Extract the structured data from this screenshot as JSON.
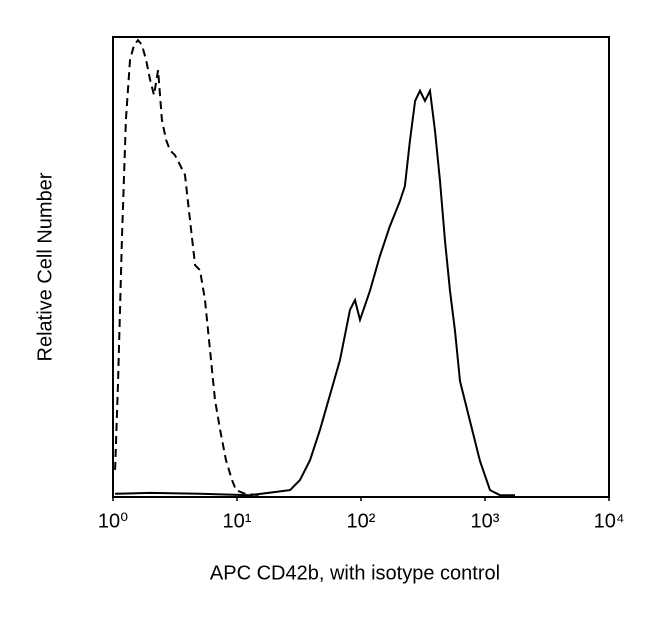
{
  "chart_data": {
    "type": "line",
    "xlabel": "APC CD42b, with isotype control",
    "ylabel": "Relative Cell Number",
    "xscale": "log",
    "xlim": [
      1,
      10000
    ],
    "ylim": [
      0,
      100
    ],
    "xticks": [
      {
        "value": 1,
        "label": "10⁰"
      },
      {
        "value": 10,
        "label": "10¹"
      },
      {
        "value": 100,
        "label": "10²"
      },
      {
        "value": 1000,
        "label": "10³"
      },
      {
        "value": 10000,
        "label": "10⁴"
      }
    ],
    "series": [
      {
        "color": "#000000",
        "dashed": true,
        "x": [
          1.04,
          1.1,
          1.18,
          1.27,
          1.37,
          1.48,
          1.59,
          1.71,
          1.85,
          1.99,
          2.14,
          2.31,
          2.48,
          2.68,
          2.88,
          3.16,
          3.47,
          3.81,
          4.18,
          4.59,
          5.03,
          5.52,
          6.06,
          6.65,
          7.3,
          8.15,
          9.11,
          9.81,
          11.6,
          15.3
        ],
        "values": [
          5.9,
          25.4,
          55.9,
          82.0,
          95.0,
          98.3,
          99.3,
          98.3,
          95.0,
          90.7,
          87.4,
          92.8,
          82.0,
          77.6,
          75.4,
          74.3,
          72.2,
          70.0,
          60.2,
          50.4,
          49.3,
          42.8,
          32.0,
          21.1,
          14.6,
          8.0,
          3.7,
          1.5,
          0.7,
          0.4
        ]
      },
      {
        "color": "#000000",
        "dashed": false,
        "x": [
          1.04,
          1.99,
          5.03,
          12.7,
          26.8,
          32.2,
          38.8,
          46.7,
          56.2,
          67.7,
          81.5,
          89.4,
          98.2,
          118,
          142,
          171,
          206,
          226,
          248,
          273,
          299,
          328,
          360,
          395,
          434,
          476,
          522,
          573,
          629,
          757,
          911,
          1097,
          1321,
          1746
        ],
        "values": [
          0.7,
          0.9,
          0.7,
          0.4,
          1.5,
          3.7,
          8.0,
          14.6,
          22.2,
          29.8,
          40.7,
          42.8,
          38.5,
          44.8,
          52.4,
          58.9,
          64.3,
          67.6,
          77.4,
          86.1,
          88.3,
          86.1,
          88.3,
          79.6,
          68.7,
          55.7,
          44.8,
          36.1,
          25.2,
          16.5,
          7.8,
          1.5,
          0.4,
          0.4
        ]
      }
    ]
  }
}
